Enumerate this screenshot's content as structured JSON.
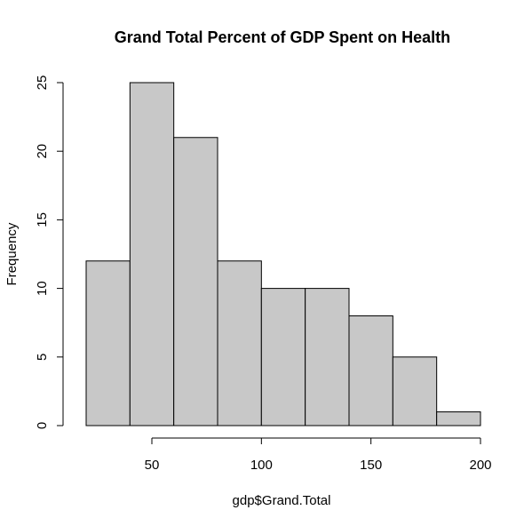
{
  "chart_data": {
    "type": "bar",
    "subtype": "histogram",
    "title": "Grand Total Percent of GDP Spent on Health",
    "xlabel": "gdp$Grand.Total",
    "ylabel": "Frequency",
    "bins": [
      {
        "start": 20,
        "end": 40,
        "count": 12
      },
      {
        "start": 40,
        "end": 60,
        "count": 25
      },
      {
        "start": 60,
        "end": 80,
        "count": 21
      },
      {
        "start": 80,
        "end": 100,
        "count": 12
      },
      {
        "start": 100,
        "end": 120,
        "count": 10
      },
      {
        "start": 120,
        "end": 140,
        "count": 10
      },
      {
        "start": 140,
        "end": 160,
        "count": 8
      },
      {
        "start": 160,
        "end": 180,
        "count": 5
      },
      {
        "start": 180,
        "end": 200,
        "count": 1
      }
    ],
    "xticks": [
      50,
      100,
      150,
      200
    ],
    "yticks": [
      0,
      5,
      10,
      15,
      20,
      25
    ],
    "xlim": [
      20,
      200
    ],
    "ylim": [
      0,
      25
    ],
    "bar_color": "#c8c8c8",
    "grid": false
  }
}
